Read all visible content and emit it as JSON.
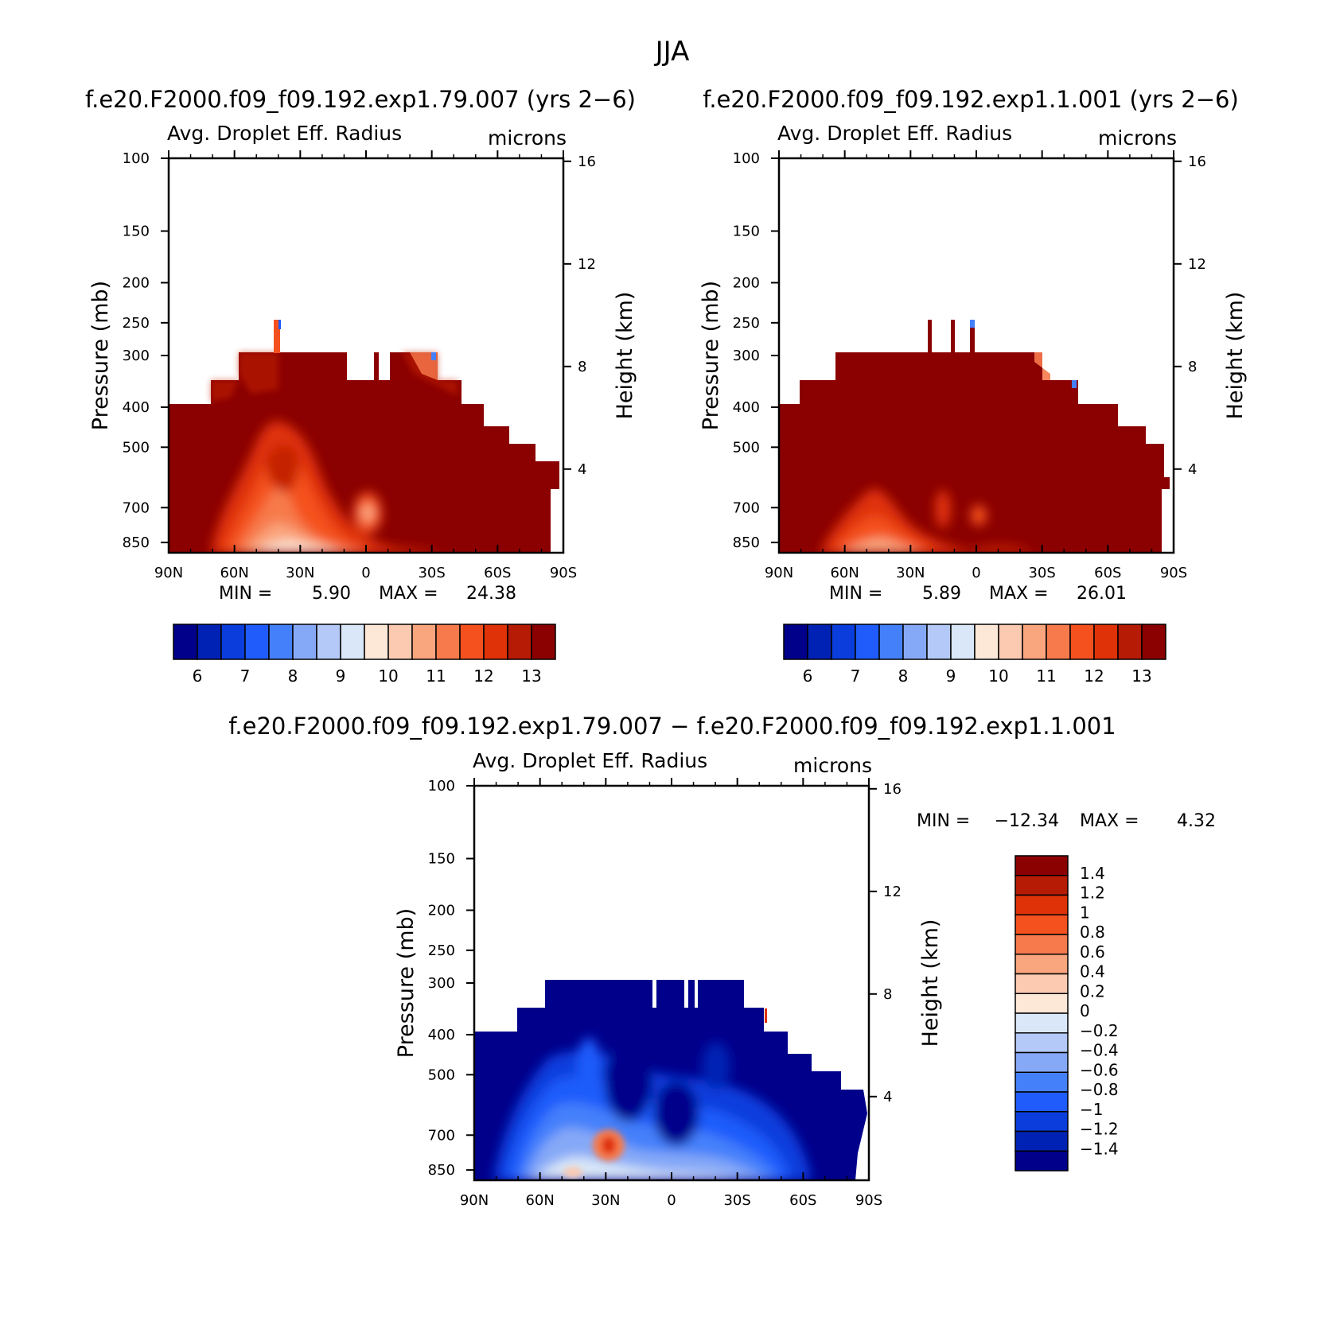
{
  "page": {
    "title": "JJA",
    "diff_title": "f.e20.F2000.f09_f09.192.exp1.79.007 − f.e20.F2000.f09_f09.192.exp1.1.001"
  },
  "colors": {
    "abs": [
      "#00008b",
      "#0022b4",
      "#0a3ddc",
      "#1f5cfb",
      "#4580fb",
      "#86a9f7",
      "#b4c9f7",
      "#d9e7f8",
      "#fde8d8",
      "#fbcab1",
      "#f9a57e",
      "#f77a4c",
      "#f4511f",
      "#df3208",
      "#b51b05",
      "#8b0000"
    ],
    "diff": [
      "#00008b",
      "#0022b4",
      "#0a3ddc",
      "#1f5cfb",
      "#4580fb",
      "#86a9f7",
      "#b4c9f7",
      "#d9e7f8",
      "#fde8d8",
      "#fbcab1",
      "#f9a57e",
      "#f77a4c",
      "#f4511f",
      "#df3208",
      "#b51b05",
      "#8b0000"
    ]
  },
  "chart_data": [
    {
      "type": "heatmap",
      "case": "f.e20.F2000.f09_f09.192.exp1.79.007 (yrs 2−6)",
      "field": "Avg. Droplet Eff. Radius",
      "units": "microns",
      "ylabel": "Pressure (mb)",
      "ylabel_right": "Height (km)",
      "x_ticks": [
        "90N",
        "60N",
        "30N",
        "0",
        "30S",
        "60S",
        "90S"
      ],
      "y_ticks": [
        "100",
        "150",
        "200",
        "250",
        "300",
        "400",
        "500",
        "700",
        "850"
      ],
      "y_right_ticks": [
        "16",
        "12",
        "8",
        "4"
      ],
      "ylim": [
        100,
        900
      ],
      "min_label": "MIN =",
      "min": "5.90",
      "max_label": "MAX =",
      "max": "24.38",
      "colorbar_labels": [
        "6",
        "7",
        "8",
        "9",
        "10",
        "11",
        "12",
        "13"
      ]
    },
    {
      "type": "heatmap",
      "case": "f.e20.F2000.f09_f09.192.exp1.1.001 (yrs 2−6)",
      "field": "Avg. Droplet Eff. Radius",
      "units": "microns",
      "ylabel": "Pressure (mb)",
      "ylabel_right": "Height (km)",
      "x_ticks": [
        "90N",
        "60N",
        "30N",
        "0",
        "30S",
        "60S",
        "90S"
      ],
      "y_ticks": [
        "100",
        "150",
        "200",
        "250",
        "300",
        "400",
        "500",
        "700",
        "850"
      ],
      "y_right_ticks": [
        "16",
        "12",
        "8",
        "4"
      ],
      "ylim": [
        100,
        900
      ],
      "min_label": "MIN =",
      "min": "5.89",
      "max_label": "MAX =",
      "max": "26.01",
      "colorbar_labels": [
        "6",
        "7",
        "8",
        "9",
        "10",
        "11",
        "12",
        "13"
      ]
    },
    {
      "type": "heatmap",
      "field": "Avg. Droplet Eff. Radius",
      "units": "microns",
      "ylabel": "Pressure (mb)",
      "ylabel_right": "Height (km)",
      "x_ticks": [
        "90N",
        "60N",
        "30N",
        "0",
        "30S",
        "60S",
        "90S"
      ],
      "y_ticks": [
        "100",
        "150",
        "200",
        "250",
        "300",
        "400",
        "500",
        "700",
        "850"
      ],
      "y_right_ticks": [
        "16",
        "12",
        "8",
        "4"
      ],
      "ylim": [
        100,
        900
      ],
      "min_label": "MIN =",
      "min": "−12.34",
      "max_label": "MAX =",
      "max": "4.32",
      "colorbar_labels": [
        "1.4",
        "1.2",
        "1",
        "0.8",
        "0.6",
        "0.4",
        "0.2",
        "0",
        "−0.2",
        "−0.4",
        "−0.6",
        "−0.8",
        "−1",
        "−1.2",
        "−1.4"
      ]
    }
  ]
}
